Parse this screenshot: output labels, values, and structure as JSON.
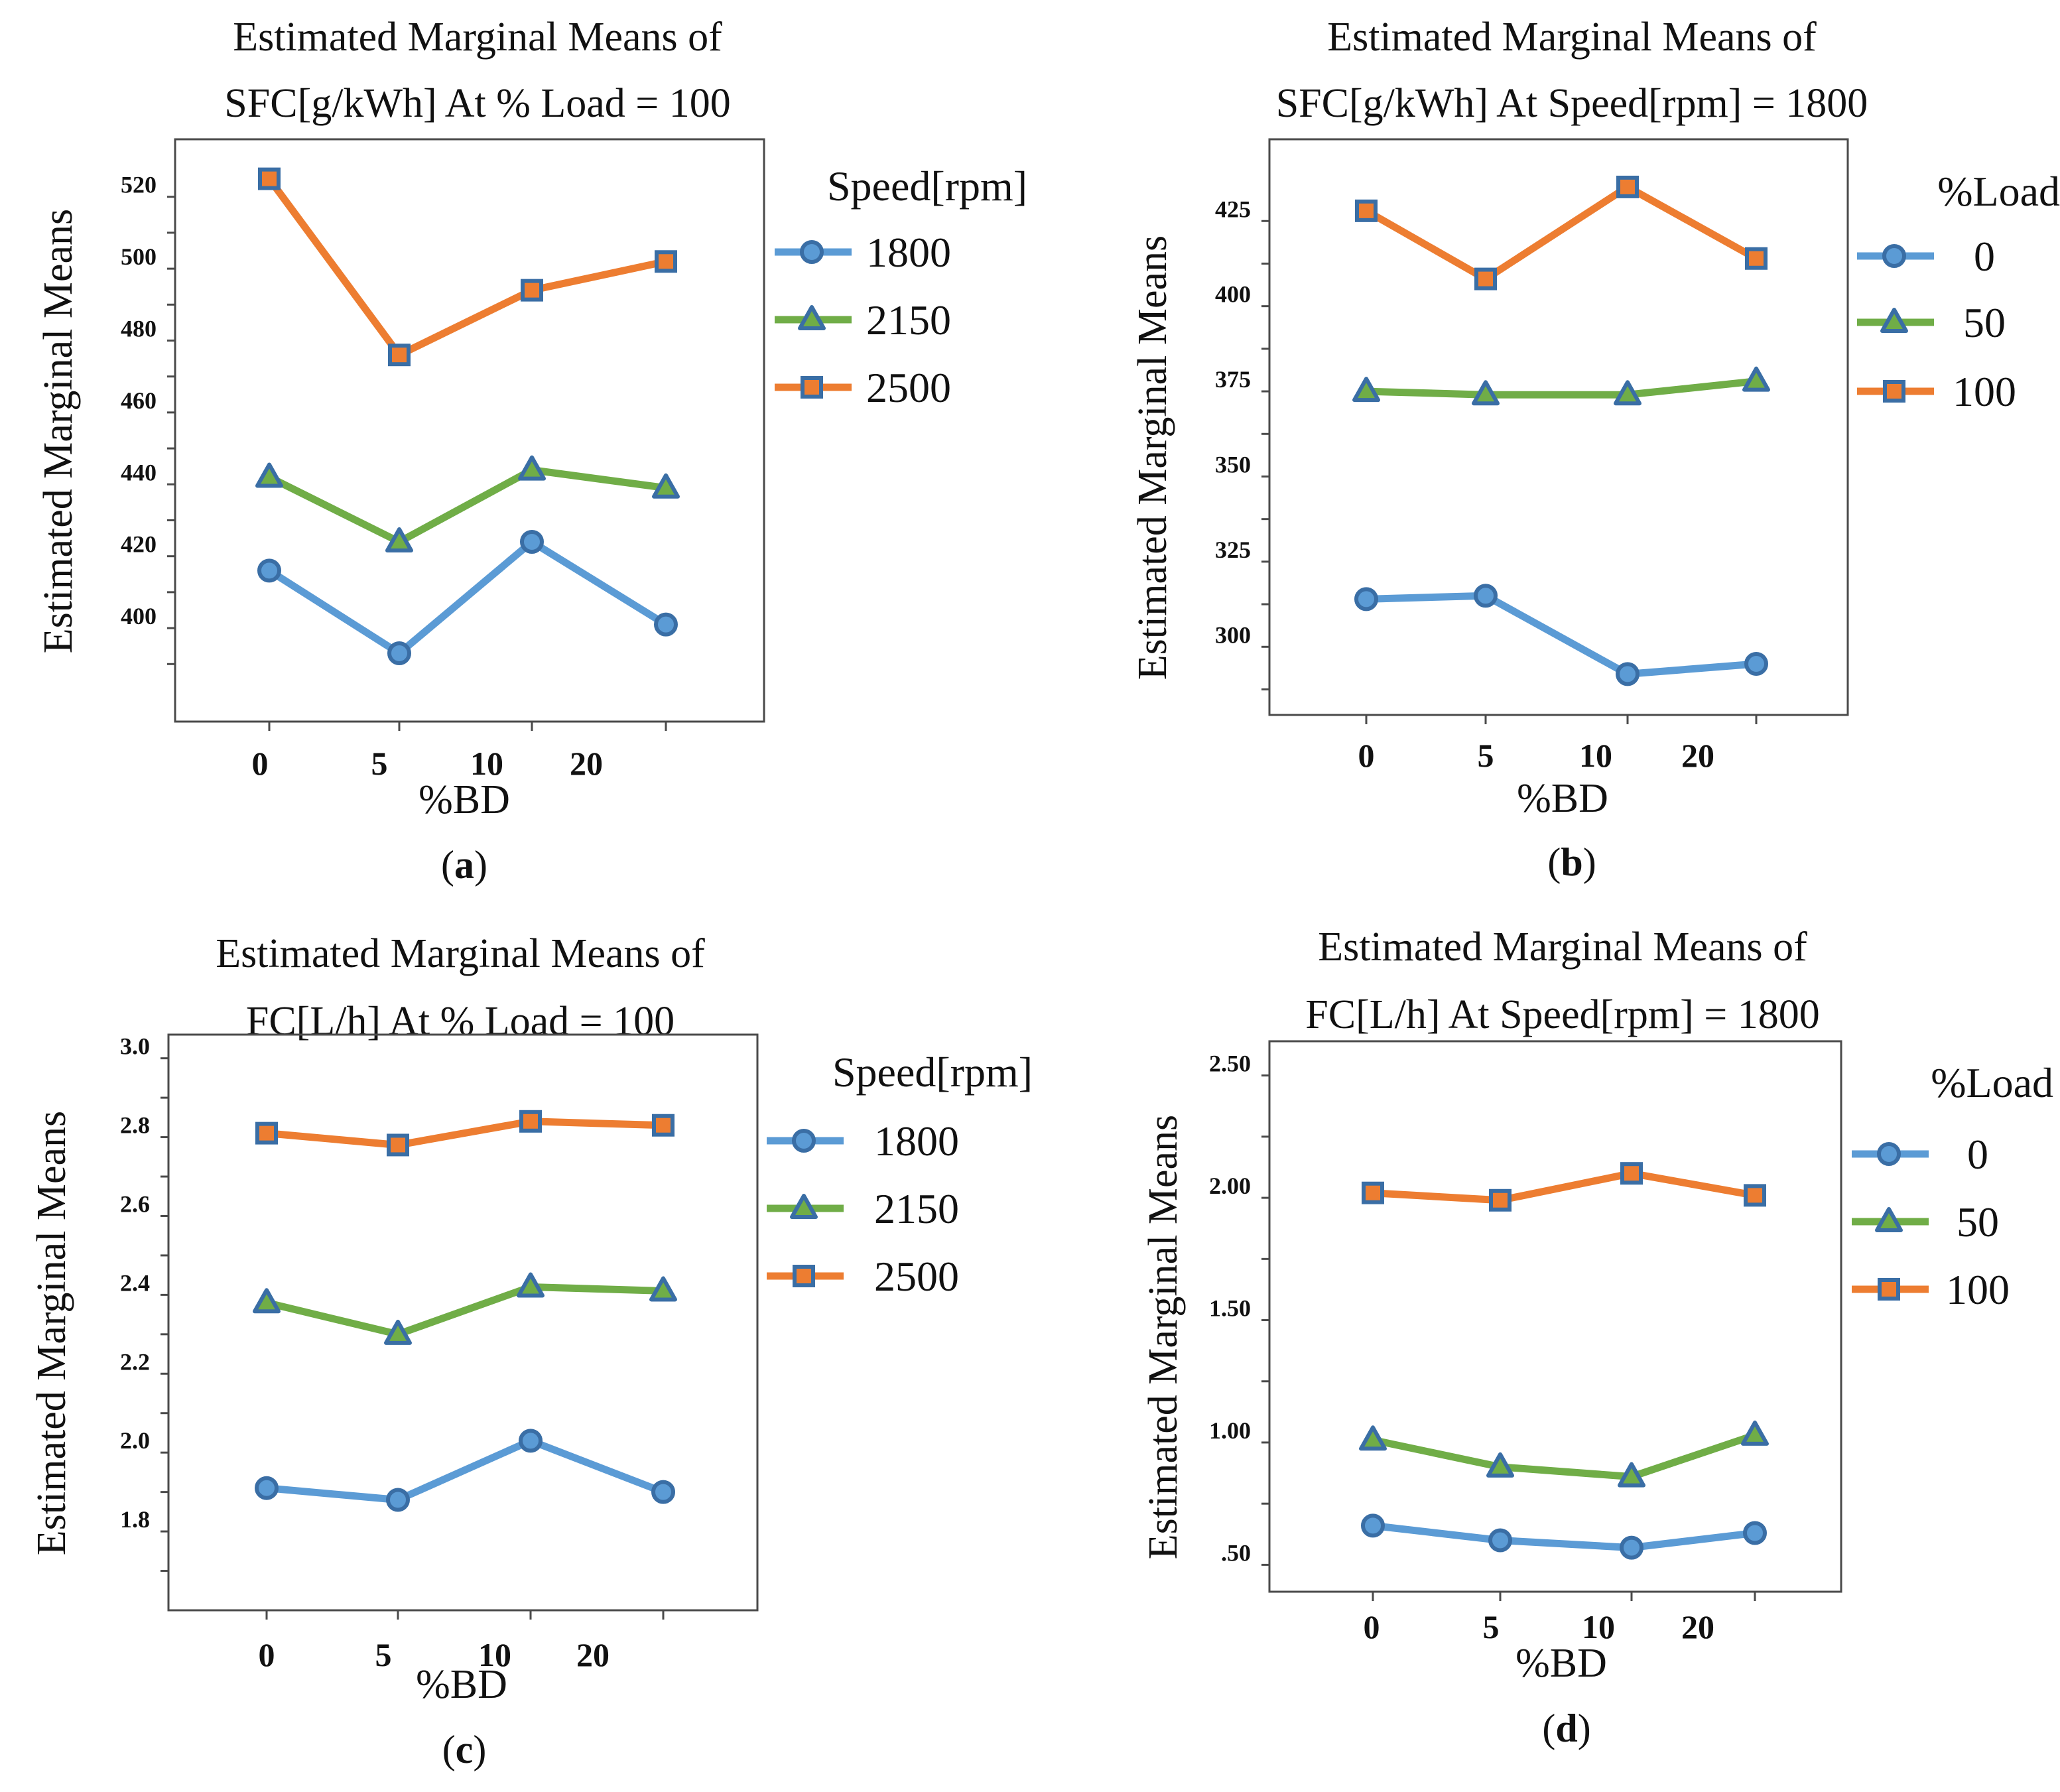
{
  "figure": {
    "colors": {
      "s0": "#5b9bd5",
      "s1": "#70ad47",
      "s2": "#ed7d31",
      "marker_edge": "#3a6ea5"
    }
  },
  "chart_data": [
    {
      "panel_label": "a",
      "type": "line",
      "title": [
        "Estimated Marginal Means of",
        "SFC[g/kWh] At % Load = 100"
      ],
      "ylabel": "Estimated Marginal Means",
      "xlabel": "%BD",
      "x_tick_labels": [
        "0",
        "5",
        "10",
        "20"
      ],
      "legend_title": "Speed[rpm]",
      "ylim": [
        374,
        536
      ],
      "y_ticks": [
        400,
        420,
        440,
        460,
        480,
        500,
        520
      ],
      "y_tick_labels": [
        "400",
        "420",
        "440",
        "460",
        "480",
        "500",
        "520"
      ],
      "categories": [
        "0",
        "5",
        "10",
        "20"
      ],
      "series": [
        {
          "name": "1800",
          "marker": "circle",
          "values": [
            416,
            393,
            424,
            401
          ]
        },
        {
          "name": "2150",
          "marker": "triangle",
          "values": [
            442,
            424,
            444,
            439
          ]
        },
        {
          "name": "2500",
          "marker": "square",
          "values": [
            525,
            476,
            494,
            502
          ]
        }
      ]
    },
    {
      "panel_label": "b",
      "type": "line",
      "title": [
        "Estimated Marginal Means of",
        "SFC[g/kWh] At Speed[rpm] = 1800"
      ],
      "ylabel": "Estimated Marginal Means",
      "xlabel": "%BD",
      "x_tick_labels": [
        "0",
        "5",
        "10",
        "20"
      ],
      "legend_title": "%Load",
      "ylim": [
        280,
        449
      ],
      "y_ticks": [
        300,
        325,
        350,
        375,
        400,
        425
      ],
      "y_tick_labels": [
        "300",
        "325",
        "350",
        "375",
        "400",
        "425"
      ],
      "categories": [
        "0",
        "5",
        "10",
        "20"
      ],
      "series": [
        {
          "name": "0",
          "marker": "circle",
          "values": [
            314,
            315,
            292,
            295
          ]
        },
        {
          "name": "50",
          "marker": "triangle",
          "values": [
            375,
            374,
            374,
            378
          ]
        },
        {
          "name": "100",
          "marker": "square",
          "values": [
            428,
            408,
            435,
            414
          ]
        }
      ]
    },
    {
      "panel_label": "c",
      "type": "line",
      "title": [
        "Estimated Marginal Means of",
        "FC[L/h] At % Load = 100"
      ],
      "ylabel": "Estimated Marginal Means",
      "xlabel": "%BD",
      "x_tick_labels": [
        "0",
        "5",
        "10",
        "20"
      ],
      "legend_title": "Speed[rpm]",
      "ylim": [
        1.6,
        3.06
      ],
      "y_ticks": [
        1.8,
        2.0,
        2.2,
        2.4,
        2.6,
        2.8,
        3.0
      ],
      "y_tick_labels": [
        "1.8",
        "2.0",
        "2.2",
        "2.4",
        "2.6",
        "2.8",
        "3.0"
      ],
      "categories": [
        "0",
        "5",
        "10",
        "20"
      ],
      "series": [
        {
          "name": "1800",
          "marker": "circle",
          "values": [
            1.91,
            1.88,
            2.03,
            1.9
          ]
        },
        {
          "name": "2150",
          "marker": "triangle",
          "values": [
            2.38,
            2.3,
            2.42,
            2.41
          ]
        },
        {
          "name": "2500",
          "marker": "square",
          "values": [
            2.81,
            2.78,
            2.84,
            2.83
          ]
        }
      ]
    },
    {
      "panel_label": "d",
      "type": "line",
      "title": [
        "Estimated Marginal Means of",
        "FC[L/h] At Speed[rpm] = 1800"
      ],
      "ylabel": "Estimated Marginal Means",
      "xlabel": "%BD",
      "x_tick_labels": [
        "0",
        "5",
        "10",
        "20"
      ],
      "legend_title": "%Load",
      "ylim": [
        0.39,
        2.64
      ],
      "y_ticks": [
        0.5,
        1.0,
        1.5,
        2.0,
        2.5
      ],
      "y_tick_labels": [
        ".50",
        "1.00",
        "1.50",
        "2.00",
        "2.50"
      ],
      "categories": [
        "0",
        "5",
        "10",
        "20"
      ],
      "series": [
        {
          "name": "0",
          "marker": "circle",
          "values": [
            0.66,
            0.6,
            0.57,
            0.63
          ]
        },
        {
          "name": "50",
          "marker": "triangle",
          "values": [
            1.01,
            0.9,
            0.86,
            1.03
          ]
        },
        {
          "name": "100",
          "marker": "square",
          "values": [
            2.02,
            1.99,
            2.1,
            2.01
          ]
        }
      ]
    }
  ]
}
